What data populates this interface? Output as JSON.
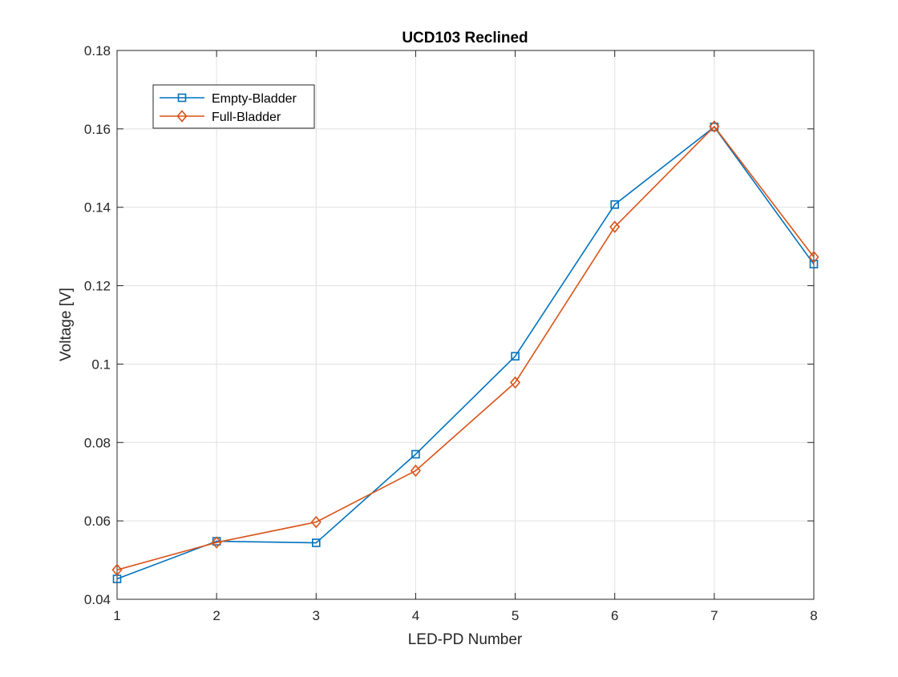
{
  "chart_data": {
    "type": "line",
    "title": "UCD103 Reclined",
    "xlabel": "LED-PD Number",
    "ylabel": "Voltage [V]",
    "x": [
      1,
      2,
      3,
      4,
      5,
      6,
      7,
      8
    ],
    "xlim": [
      1,
      8
    ],
    "ylim": [
      0.04,
      0.18
    ],
    "xticks": [
      1,
      2,
      3,
      4,
      5,
      6,
      7,
      8
    ],
    "xtick_labels": [
      "1",
      "2",
      "3",
      "4",
      "5",
      "6",
      "7",
      "8"
    ],
    "yticks": [
      0.04,
      0.06,
      0.08,
      0.1,
      0.12,
      0.14,
      0.16,
      0.18
    ],
    "ytick_labels": [
      "0.04",
      "0.06",
      "0.08",
      "0.1",
      "0.12",
      "0.14",
      "0.16",
      "0.18"
    ],
    "grid": true,
    "legend_position": "top-left",
    "series": [
      {
        "name": "Empty-Bladder",
        "color": "#0072BD",
        "marker": "square",
        "values": [
          0.0452,
          0.0548,
          0.0544,
          0.077,
          0.102,
          0.1407,
          0.1605,
          0.1255
        ]
      },
      {
        "name": "Full-Bladder",
        "color": "#D95319",
        "marker": "diamond",
        "values": [
          0.0475,
          0.0545,
          0.0597,
          0.0728,
          0.0953,
          0.135,
          0.1606,
          0.1273
        ]
      }
    ]
  }
}
